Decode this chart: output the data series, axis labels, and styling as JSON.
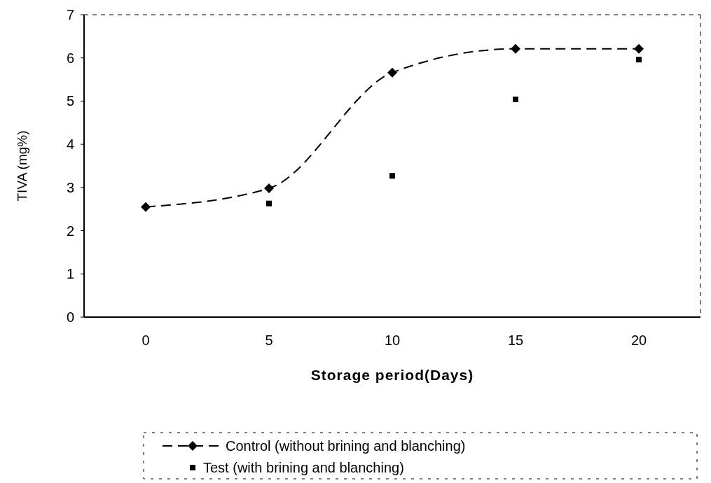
{
  "chart_data": {
    "type": "line",
    "xlabel": "Storage period(Days)",
    "ylabel": "TIVA (mg%)",
    "categories": [
      "0",
      "5",
      "10",
      "15",
      "20"
    ],
    "ylim": [
      0,
      7
    ],
    "yticks": [
      0,
      1,
      2,
      3,
      4,
      5,
      6,
      7
    ],
    "grid": false,
    "legend": "bottom",
    "series": [
      {
        "name": "Control (without brining and blanching)",
        "color": "#000000",
        "type": "line",
        "marker": "diamond",
        "line_style": "dashed",
        "values": [
          2.55,
          2.98,
          5.66,
          6.21,
          6.21
        ]
      },
      {
        "name": "Test (with brining and blanching)",
        "color": "#000000",
        "type": "scatter",
        "marker": "square",
        "values": [
          null,
          2.63,
          3.27,
          5.04,
          5.96
        ]
      }
    ]
  }
}
